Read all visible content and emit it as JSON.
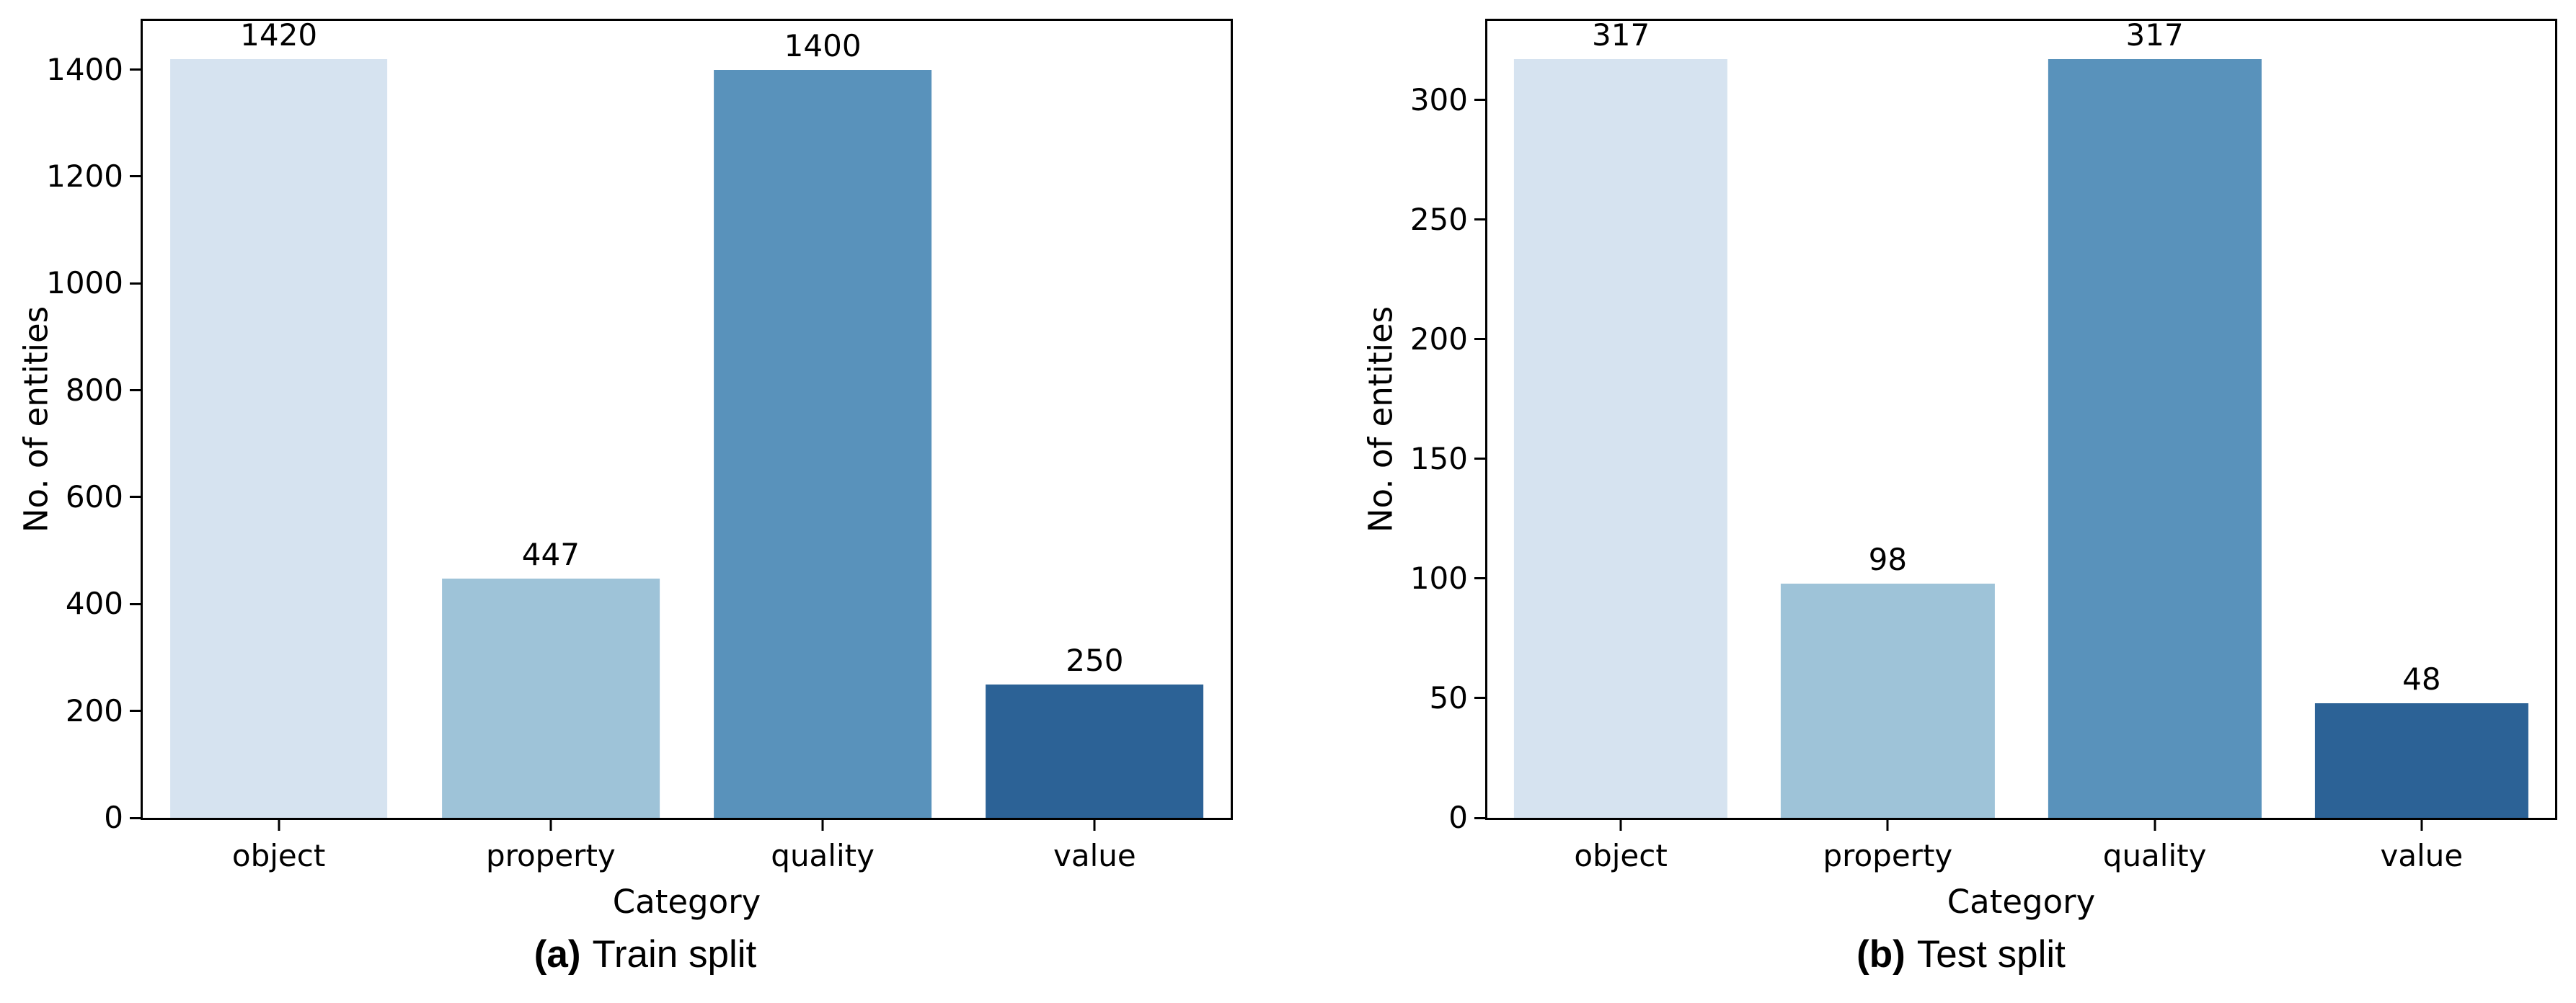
{
  "figure": {
    "background": "#ffffff",
    "text_color": "#000000",
    "spine_color": "#000000",
    "description": "Two-panel bar figure showing entity counts per category for train and test splits"
  },
  "chart_data": [
    {
      "type": "bar",
      "panel": "a",
      "caption_bold": "(a)",
      "caption_text": "Train split",
      "categories": [
        "object",
        "property",
        "quality",
        "value"
      ],
      "values": [
        1420,
        447,
        1400,
        250
      ],
      "bar_labels": [
        "1420",
        "447",
        "1400",
        "250"
      ],
      "xlabel": "Category",
      "ylabel": "No. of entities",
      "ylim": [
        0,
        1491
      ],
      "yticks": [
        0,
        200,
        400,
        600,
        800,
        1000,
        1200,
        1400
      ],
      "bar_colors": [
        "#d6e3f0",
        "#9ec3d8",
        "#5992bb",
        "#2c6296"
      ],
      "grid": false,
      "legend": null
    },
    {
      "type": "bar",
      "panel": "b",
      "caption_bold": "(b)",
      "caption_text": "Test split",
      "categories": [
        "object",
        "property",
        "quality",
        "value"
      ],
      "values": [
        317,
        98,
        317,
        48
      ],
      "bar_labels": [
        "317",
        "98",
        "317",
        "48"
      ],
      "xlabel": "Category",
      "ylabel": "No. of entities",
      "ylim": [
        0,
        333
      ],
      "yticks": [
        0,
        50,
        100,
        150,
        200,
        250,
        300
      ],
      "bar_colors": [
        "#d6e3f0",
        "#9ec3d8",
        "#5992bb",
        "#2c6296"
      ],
      "grid": false,
      "legend": null
    }
  ]
}
